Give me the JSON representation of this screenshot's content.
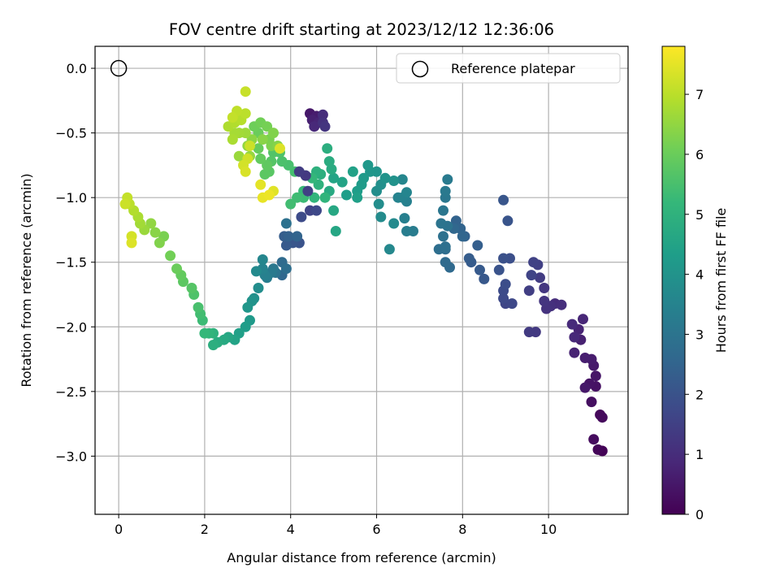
{
  "chart_data": {
    "type": "scatter",
    "title": "FOV centre drift starting at 2023/12/12 12:36:06",
    "xlabel": "Angular distance from reference (arcmin)",
    "ylabel": "Rotation from reference (arcmin)",
    "xlim": [
      -0.55,
      11.85
    ],
    "ylim": [
      -3.45,
      0.17
    ],
    "xticks": [
      0,
      2,
      4,
      6,
      8,
      10
    ],
    "yticks": [
      0.0,
      -0.5,
      -1.0,
      -1.5,
      -2.0,
      -2.5,
      -3.0
    ],
    "xtick_labels": [
      "0",
      "2",
      "4",
      "6",
      "8",
      "10"
    ],
    "ytick_labels": [
      "0.0",
      "−0.5",
      "−1.0",
      "−1.5",
      "−2.0",
      "−2.5",
      "−3.0"
    ],
    "grid": true,
    "legend": {
      "position": "top-right",
      "entries": [
        "Reference platepar"
      ]
    },
    "reference_point": {
      "x": 0.0,
      "y": 0.0,
      "label": "Reference platepar"
    },
    "colorbar": {
      "label": "Hours from first FF file",
      "range": [
        0,
        7.8
      ],
      "ticks": [
        0,
        1,
        2,
        3,
        4,
        5,
        6,
        7
      ],
      "tick_labels": [
        "0",
        "1",
        "2",
        "3",
        "4",
        "5",
        "6",
        "7"
      ],
      "colormap": "viridis",
      "stops": [
        "#440154",
        "#482878",
        "#3e4989",
        "#31688e",
        "#26828e",
        "#1f9e89",
        "#35b779",
        "#6ece58",
        "#b5de2b",
        "#fde725"
      ]
    },
    "points": [
      [
        11.25,
        -2.96,
        0.05
      ],
      [
        11.15,
        -2.95,
        0.1
      ],
      [
        11.2,
        -2.68,
        0.15
      ],
      [
        11.25,
        -2.7,
        0.2
      ],
      [
        11.05,
        -2.87,
        0.25
      ],
      [
        11.0,
        -2.58,
        0.3
      ],
      [
        11.1,
        -2.46,
        0.35
      ],
      [
        10.95,
        -2.44,
        0.4
      ],
      [
        11.1,
        -2.38,
        0.45
      ],
      [
        10.85,
        -2.47,
        0.5
      ],
      [
        11.05,
        -2.3,
        0.55
      ],
      [
        11.0,
        -2.25,
        0.6
      ],
      [
        10.85,
        -2.24,
        0.65
      ],
      [
        10.75,
        -2.1,
        0.7
      ],
      [
        10.6,
        -2.2,
        0.75
      ],
      [
        10.7,
        -2.02,
        0.8
      ],
      [
        10.8,
        -1.94,
        0.85
      ],
      [
        10.6,
        -2.08,
        0.9
      ],
      [
        10.55,
        -1.98,
        0.95
      ],
      [
        10.15,
        -1.82,
        1.0
      ],
      [
        10.3,
        -1.83,
        1.05
      ],
      [
        10.05,
        -1.84,
        1.1
      ],
      [
        9.95,
        -1.86,
        1.15
      ],
      [
        9.9,
        -1.8,
        1.2
      ],
      [
        9.9,
        -1.7,
        1.25
      ],
      [
        9.7,
        -2.04,
        1.3
      ],
      [
        9.55,
        -2.04,
        1.35
      ],
      [
        9.8,
        -1.62,
        1.4
      ],
      [
        9.55,
        -1.72,
        1.45
      ],
      [
        9.75,
        -1.52,
        1.5
      ],
      [
        9.65,
        -1.5,
        1.55
      ],
      [
        9.6,
        -1.6,
        1.6
      ],
      [
        9.0,
        -1.82,
        1.65
      ],
      [
        9.15,
        -1.82,
        1.7
      ],
      [
        8.95,
        -1.78,
        1.75
      ],
      [
        8.95,
        -1.72,
        1.8
      ],
      [
        9.0,
        -1.67,
        1.85
      ],
      [
        9.1,
        -1.47,
        1.9
      ],
      [
        8.95,
        -1.47,
        1.95
      ],
      [
        8.85,
        -1.56,
        2.0
      ],
      [
        9.05,
        -1.18,
        2.05
      ],
      [
        8.95,
        -1.02,
        2.1
      ],
      [
        8.5,
        -1.63,
        2.15
      ],
      [
        8.4,
        -1.56,
        2.2
      ],
      [
        8.2,
        -1.5,
        2.25
      ],
      [
        8.15,
        -1.47,
        2.3
      ],
      [
        8.35,
        -1.37,
        2.35
      ],
      [
        8.05,
        -1.3,
        2.4
      ],
      [
        7.85,
        -1.18,
        2.45
      ],
      [
        7.95,
        -1.24,
        2.5
      ],
      [
        8.0,
        -1.3,
        2.55
      ],
      [
        7.8,
        -1.24,
        2.6
      ],
      [
        7.7,
        -1.54,
        2.65
      ],
      [
        7.6,
        -1.5,
        2.7
      ],
      [
        7.6,
        -1.4,
        2.75
      ],
      [
        7.45,
        -1.4,
        2.8
      ],
      [
        7.6,
        -1.38,
        2.85
      ],
      [
        7.55,
        -1.3,
        2.9
      ],
      [
        7.65,
        -1.22,
        2.95
      ],
      [
        7.5,
        -1.2,
        3.0
      ],
      [
        7.55,
        -1.1,
        3.05
      ],
      [
        7.6,
        -1.0,
        3.1
      ],
      [
        7.6,
        -0.95,
        3.15
      ],
      [
        7.65,
        -0.86,
        3.2
      ],
      [
        6.85,
        -1.26,
        3.25
      ],
      [
        6.7,
        -1.26,
        3.3
      ],
      [
        6.65,
        -1.16,
        3.35
      ],
      [
        6.7,
        -1.03,
        3.4
      ],
      [
        6.6,
        -1.0,
        3.45
      ],
      [
        6.5,
        -1.0,
        3.5
      ],
      [
        6.7,
        -0.96,
        3.55
      ],
      [
        6.6,
        -0.86,
        3.6
      ],
      [
        6.3,
        -1.4,
        3.65
      ],
      [
        6.4,
        -1.2,
        3.7
      ],
      [
        6.1,
        -1.15,
        3.75
      ],
      [
        6.05,
        -1.05,
        3.8
      ],
      [
        6.0,
        -0.95,
        3.85
      ],
      [
        6.1,
        -0.9,
        3.9
      ],
      [
        6.4,
        -0.87,
        3.95
      ],
      [
        6.2,
        -0.85,
        4.0
      ],
      [
        6.0,
        -0.8,
        4.05
      ],
      [
        5.85,
        -0.8,
        4.1
      ],
      [
        5.8,
        -0.75,
        4.15
      ],
      [
        5.7,
        -0.85,
        4.2
      ],
      [
        5.65,
        -0.9,
        4.25
      ],
      [
        5.55,
        -0.95,
        4.3
      ],
      [
        5.3,
        -0.98,
        4.35
      ],
      [
        5.55,
        -1.0,
        4.4
      ],
      [
        5.45,
        -0.8,
        4.45
      ],
      [
        5.2,
        -0.88,
        4.5
      ],
      [
        5.0,
        -0.85,
        4.55
      ],
      [
        5.05,
        -1.26,
        4.6
      ],
      [
        5.0,
        -1.1,
        4.65
      ],
      [
        4.9,
        -0.95,
        4.7
      ],
      [
        4.95,
        -0.78,
        4.75
      ],
      [
        4.9,
        -0.72,
        4.8
      ],
      [
        4.85,
        -0.62,
        4.85
      ],
      [
        4.7,
        -0.82,
        4.9
      ],
      [
        4.6,
        -0.8,
        4.95
      ],
      [
        4.65,
        -0.9,
        5.0
      ],
      [
        4.8,
        -1.0,
        5.05
      ],
      [
        4.55,
        -1.0,
        5.1
      ],
      [
        4.5,
        -0.85,
        5.15
      ],
      [
        4.35,
        -0.83,
        5.2
      ],
      [
        4.3,
        -0.95,
        5.25
      ],
      [
        4.3,
        -1.0,
        5.3
      ],
      [
        4.15,
        -1.0,
        5.35
      ],
      [
        4.0,
        -1.05,
        5.4
      ],
      [
        4.1,
        -0.8,
        5.45
      ],
      [
        3.95,
        -0.75,
        5.5
      ],
      [
        3.8,
        -0.72,
        5.55
      ],
      [
        3.75,
        -0.65,
        5.6
      ],
      [
        3.6,
        -0.65,
        5.65
      ],
      [
        3.55,
        -0.72,
        5.7
      ],
      [
        3.5,
        -0.8,
        5.75
      ],
      [
        3.4,
        -0.82,
        5.8
      ],
      [
        3.45,
        -0.75,
        5.85
      ],
      [
        3.3,
        -0.7,
        5.9
      ],
      [
        3.25,
        -0.62,
        5.95
      ],
      [
        3.25,
        -0.5,
        6.0
      ],
      [
        3.15,
        -0.45,
        6.05
      ],
      [
        3.3,
        -0.42,
        6.1
      ],
      [
        3.45,
        -0.45,
        6.15
      ],
      [
        3.5,
        -0.55,
        6.2
      ],
      [
        3.55,
        -0.6,
        6.25
      ],
      [
        3.6,
        -0.5,
        6.3
      ],
      [
        3.7,
        -0.6,
        6.35
      ],
      [
        3.35,
        -0.55,
        6.4
      ],
      [
        3.1,
        -0.55,
        6.45
      ],
      [
        3.0,
        -0.6,
        6.5
      ],
      [
        3.05,
        -0.68,
        6.55
      ],
      [
        2.8,
        -0.68,
        6.6
      ],
      [
        2.95,
        -0.5,
        6.65
      ],
      [
        2.8,
        -0.5,
        6.7
      ],
      [
        2.7,
        -0.5,
        6.75
      ],
      [
        2.65,
        -0.55,
        6.8
      ],
      [
        2.55,
        -0.45,
        6.85
      ],
      [
        2.7,
        -0.42,
        6.9
      ],
      [
        2.85,
        -0.4,
        6.95
      ],
      [
        2.95,
        -0.35,
        7.0
      ],
      [
        2.75,
        -0.33,
        7.05
      ],
      [
        2.65,
        -0.38,
        7.1
      ],
      [
        2.95,
        -0.18,
        7.15
      ],
      [
        3.05,
        -0.6,
        7.2
      ],
      [
        3.0,
        -0.7,
        7.25
      ],
      [
        2.9,
        -0.75,
        7.3
      ],
      [
        2.95,
        -0.8,
        7.35
      ],
      [
        3.75,
        -0.62,
        7.4
      ],
      [
        3.6,
        -0.95,
        7.45
      ],
      [
        3.3,
        -0.9,
        7.5
      ],
      [
        3.35,
        -1.0,
        7.55
      ],
      [
        3.5,
        -0.98,
        7.6
      ],
      [
        4.45,
        -0.35,
        0.5
      ],
      [
        4.6,
        -0.37,
        0.6
      ],
      [
        4.5,
        -0.4,
        0.7
      ],
      [
        4.65,
        -0.42,
        0.8
      ],
      [
        4.55,
        -0.45,
        0.9
      ],
      [
        4.75,
        -0.36,
        1.0
      ],
      [
        4.75,
        -0.42,
        1.1
      ],
      [
        4.8,
        -0.45,
        1.2
      ],
      [
        4.35,
        -0.83,
        1.3
      ],
      [
        4.2,
        -0.8,
        1.4
      ],
      [
        4.4,
        -0.95,
        1.5
      ],
      [
        4.45,
        -1.1,
        1.6
      ],
      [
        4.6,
        -1.1,
        1.7
      ],
      [
        4.25,
        -1.15,
        1.8
      ],
      [
        4.2,
        -1.35,
        1.9
      ],
      [
        4.2,
        -1.35,
        2.0
      ],
      [
        4.05,
        -1.35,
        2.1
      ],
      [
        3.9,
        -1.37,
        2.2
      ],
      [
        3.85,
        -1.3,
        2.3
      ],
      [
        3.95,
        -1.3,
        2.4
      ],
      [
        4.15,
        -1.3,
        2.5
      ],
      [
        3.8,
        -1.6,
        2.6
      ],
      [
        3.8,
        -1.5,
        2.7
      ],
      [
        3.9,
        -1.55,
        2.8
      ],
      [
        3.9,
        -1.2,
        2.9
      ],
      [
        3.65,
        -1.58,
        3.0
      ],
      [
        3.6,
        -1.55,
        3.1
      ],
      [
        3.55,
        -1.58,
        3.2
      ],
      [
        3.45,
        -1.62,
        3.3
      ],
      [
        3.4,
        -1.6,
        3.4
      ],
      [
        3.35,
        -1.55,
        3.5
      ],
      [
        3.35,
        -1.48,
        3.6
      ],
      [
        3.2,
        -1.57,
        3.7
      ],
      [
        3.25,
        -1.7,
        3.8
      ],
      [
        3.15,
        -1.78,
        3.9
      ],
      [
        3.1,
        -1.8,
        4.0
      ],
      [
        3.0,
        -1.85,
        4.1
      ],
      [
        3.05,
        -1.95,
        4.2
      ],
      [
        2.95,
        -2.0,
        4.3
      ],
      [
        2.8,
        -2.05,
        4.4
      ],
      [
        2.7,
        -2.1,
        4.5
      ],
      [
        2.55,
        -2.08,
        4.6
      ],
      [
        2.45,
        -2.1,
        4.7
      ],
      [
        2.3,
        -2.12,
        4.8
      ],
      [
        2.2,
        -2.14,
        4.9
      ],
      [
        2.2,
        -2.05,
        5.0
      ],
      [
        2.1,
        -2.05,
        5.1
      ],
      [
        2.0,
        -2.05,
        5.2
      ],
      [
        1.95,
        -1.95,
        5.3
      ],
      [
        1.9,
        -1.9,
        5.4
      ],
      [
        1.85,
        -1.85,
        5.5
      ],
      [
        1.75,
        -1.75,
        5.6
      ],
      [
        1.7,
        -1.7,
        5.7
      ],
      [
        1.5,
        -1.65,
        5.8
      ],
      [
        1.45,
        -1.6,
        5.9
      ],
      [
        1.35,
        -1.55,
        6.0
      ],
      [
        1.2,
        -1.45,
        6.1
      ],
      [
        1.05,
        -1.3,
        6.2
      ],
      [
        0.95,
        -1.35,
        6.3
      ],
      [
        0.85,
        -1.27,
        6.4
      ],
      [
        0.75,
        -1.2,
        6.5
      ],
      [
        0.6,
        -1.25,
        6.6
      ],
      [
        0.5,
        -1.2,
        6.7
      ],
      [
        0.45,
        -1.15,
        6.8
      ],
      [
        0.35,
        -1.1,
        6.9
      ],
      [
        0.25,
        -1.05,
        7.0
      ],
      [
        0.2,
        -1.0,
        7.1
      ],
      [
        0.15,
        -1.05,
        7.2
      ],
      [
        0.3,
        -1.3,
        7.3
      ],
      [
        0.3,
        -1.35,
        7.4
      ]
    ]
  }
}
